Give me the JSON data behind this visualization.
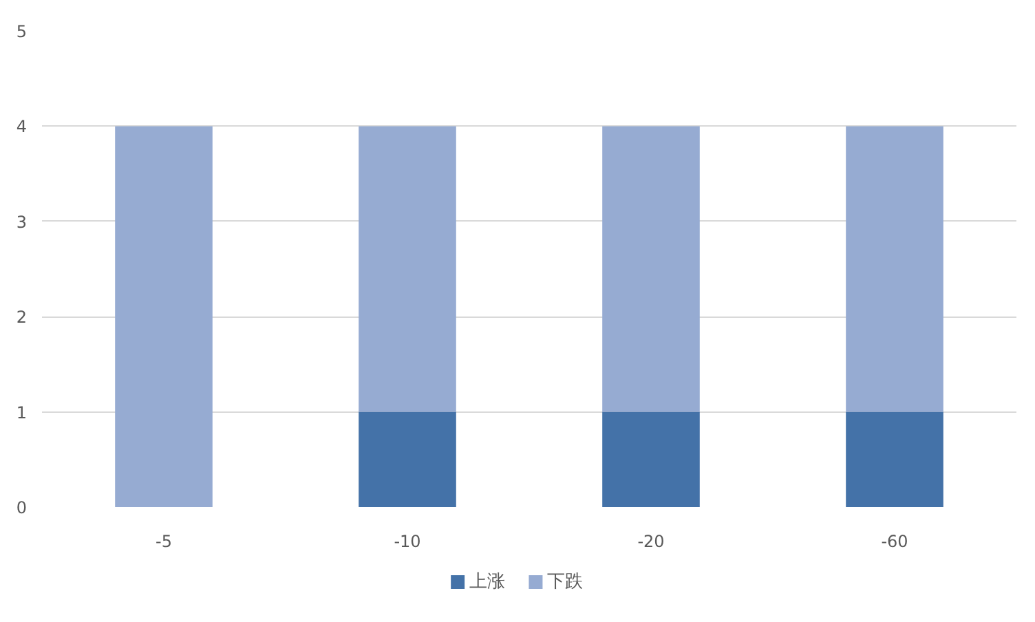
{
  "chart_data": {
    "type": "bar",
    "stacked": true,
    "categories": [
      "-5",
      "-10",
      "-20",
      "-60"
    ],
    "series": [
      {
        "name": "上涨",
        "color": "#4472a8",
        "values": [
          0,
          1,
          1,
          1
        ]
      },
      {
        "name": "下跌",
        "color": "#96abd2",
        "values": [
          4,
          3,
          3,
          3
        ]
      }
    ],
    "ylim": [
      0,
      5
    ],
    "yticks": [
      0,
      1,
      2,
      3,
      4,
      5
    ],
    "grid": "y",
    "legend": "bottom"
  }
}
